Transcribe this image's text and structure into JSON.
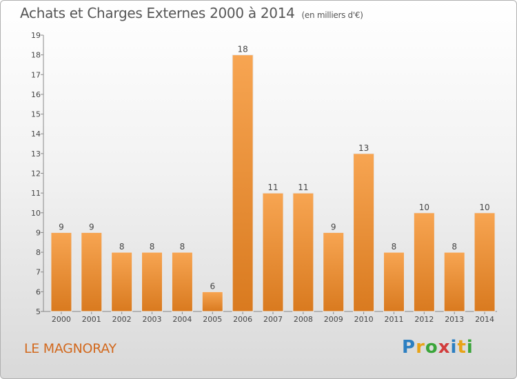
{
  "chart_data": {
    "type": "bar",
    "title": "Achats et Charges Externes 2000 à 2014",
    "unit": "(en milliers d'€)",
    "categories": [
      "2000",
      "2001",
      "2002",
      "2003",
      "2004",
      "2005",
      "2006",
      "2007",
      "2008",
      "2009",
      "2010",
      "2011",
      "2012",
      "2013",
      "2014"
    ],
    "values": [
      9,
      9,
      8,
      8,
      8,
      6,
      18,
      11,
      11,
      9,
      13,
      8,
      10,
      8,
      10
    ],
    "ylim": [
      5,
      19
    ],
    "yticks": [
      5,
      6,
      7,
      8,
      9,
      10,
      11,
      12,
      13,
      14,
      15,
      16,
      17,
      18,
      19
    ],
    "grid": false,
    "bar_color_light": "#f7a552",
    "bar_color_dark": "#d97a1f"
  },
  "commune": "LE MAGNORAY",
  "logo": {
    "letters": [
      "P",
      "r",
      "o",
      "x",
      "i",
      "t",
      "i"
    ],
    "colors": [
      "#2c7fc1",
      "#e8a317",
      "#3aa53a",
      "#d23c3c",
      "#2c7fc1",
      "#e8a317",
      "#3aa53a"
    ]
  }
}
